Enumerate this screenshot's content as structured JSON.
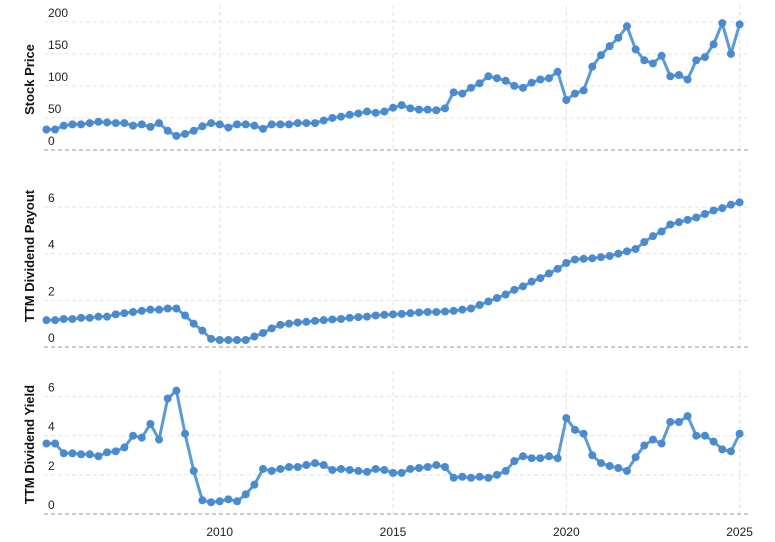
{
  "chart_data": [
    {
      "type": "line",
      "ylabel": "Stock Price",
      "color": "#5b9bd5",
      "x": [
        2005,
        2005.25,
        2005.5,
        2005.75,
        2006,
        2006.25,
        2006.5,
        2006.75,
        2007,
        2007.25,
        2007.5,
        2007.75,
        2008,
        2008.25,
        2008.5,
        2008.75,
        2009,
        2009.25,
        2009.5,
        2009.75,
        2010,
        2010.25,
        2010.5,
        2010.75,
        2011,
        2011.25,
        2011.5,
        2011.75,
        2012,
        2012.25,
        2012.5,
        2012.75,
        2013,
        2013.25,
        2013.5,
        2013.75,
        2014,
        2014.25,
        2014.5,
        2014.75,
        2015,
        2015.25,
        2015.5,
        2015.75,
        2016,
        2016.25,
        2016.5,
        2016.75,
        2017,
        2017.25,
        2017.5,
        2017.75,
        2018,
        2018.25,
        2018.5,
        2018.75,
        2019,
        2019.25,
        2019.5,
        2019.75,
        2020,
        2020.25,
        2020.5,
        2020.75,
        2021,
        2021.25,
        2021.5,
        2021.75,
        2022,
        2022.25,
        2022.5,
        2022.75,
        2023,
        2023.25,
        2023.5,
        2023.75,
        2024,
        2024.25,
        2024.5,
        2024.75,
        2025
      ],
      "values": [
        32,
        32,
        38,
        40,
        40,
        42,
        44,
        43,
        42,
        42,
        38,
        40,
        36,
        42,
        30,
        22,
        25,
        30,
        37,
        42,
        40,
        35,
        40,
        40,
        38,
        33,
        40,
        40,
        40,
        42,
        42,
        42,
        46,
        50,
        52,
        55,
        57,
        60,
        58,
        60,
        66,
        70,
        65,
        63,
        63,
        62,
        65,
        90,
        88,
        97,
        104,
        115,
        112,
        108,
        100,
        97,
        105,
        110,
        112,
        122,
        78,
        88,
        93,
        130,
        148,
        162,
        175,
        193,
        157,
        140,
        135,
        147,
        115,
        117,
        110,
        140,
        145,
        165,
        198,
        150,
        196
      ],
      "xlim": [
        2004.93,
        2025.3
      ],
      "ylim": [
        0,
        220
      ],
      "yticks": [
        0,
        50,
        100,
        150,
        200
      ]
    },
    {
      "type": "line",
      "ylabel": "TTM Dividend Payout",
      "color": "#5b9bd5",
      "x": [
        2005,
        2005.25,
        2005.5,
        2005.75,
        2006,
        2006.25,
        2006.5,
        2006.75,
        2007,
        2007.25,
        2007.5,
        2007.75,
        2008,
        2008.25,
        2008.5,
        2008.75,
        2009,
        2009.25,
        2009.5,
        2009.75,
        2010,
        2010.25,
        2010.5,
        2010.75,
        2011,
        2011.25,
        2011.5,
        2011.75,
        2012,
        2012.25,
        2012.5,
        2012.75,
        2013,
        2013.25,
        2013.5,
        2013.75,
        2014,
        2014.25,
        2014.5,
        2014.75,
        2015,
        2015.25,
        2015.5,
        2015.75,
        2016,
        2016.25,
        2016.5,
        2016.75,
        2017,
        2017.25,
        2017.5,
        2017.75,
        2018,
        2018.25,
        2018.5,
        2018.75,
        2019,
        2019.25,
        2019.5,
        2019.75,
        2020,
        2020.25,
        2020.5,
        2020.75,
        2021,
        2021.25,
        2021.5,
        2021.75,
        2022,
        2022.25,
        2022.5,
        2022.75,
        2023,
        2023.25,
        2023.5,
        2023.75,
        2024,
        2024.25,
        2024.5,
        2024.75,
        2025
      ],
      "values": [
        1.15,
        1.15,
        1.2,
        1.2,
        1.25,
        1.25,
        1.3,
        1.3,
        1.4,
        1.45,
        1.5,
        1.55,
        1.6,
        1.6,
        1.65,
        1.65,
        1.35,
        1.0,
        0.7,
        0.35,
        0.3,
        0.3,
        0.3,
        0.3,
        0.45,
        0.6,
        0.8,
        0.95,
        1.0,
        1.05,
        1.08,
        1.12,
        1.15,
        1.18,
        1.2,
        1.25,
        1.28,
        1.3,
        1.35,
        1.38,
        1.4,
        1.42,
        1.45,
        1.48,
        1.5,
        1.5,
        1.52,
        1.55,
        1.6,
        1.65,
        1.8,
        1.95,
        2.1,
        2.25,
        2.45,
        2.6,
        2.8,
        2.95,
        3.15,
        3.35,
        3.6,
        3.75,
        3.78,
        3.8,
        3.85,
        3.9,
        4.0,
        4.1,
        4.2,
        4.5,
        4.75,
        4.95,
        5.25,
        5.35,
        5.45,
        5.55,
        5.7,
        5.85,
        5.95,
        6.1,
        6.2
      ],
      "xlim": [
        2004.93,
        2025.3
      ],
      "ylim": [
        0,
        7.8
      ],
      "yticks": [
        0,
        2,
        4,
        6
      ]
    },
    {
      "type": "line",
      "ylabel": "TTM Dividend Yield",
      "color": "#5b9bd5",
      "x": [
        2005,
        2005.25,
        2005.5,
        2005.75,
        2006,
        2006.25,
        2006.5,
        2006.75,
        2007,
        2007.25,
        2007.5,
        2007.75,
        2008,
        2008.25,
        2008.5,
        2008.75,
        2009,
        2009.25,
        2009.5,
        2009.75,
        2010,
        2010.25,
        2010.5,
        2010.75,
        2011,
        2011.25,
        2011.5,
        2011.75,
        2012,
        2012.25,
        2012.5,
        2012.75,
        2013,
        2013.25,
        2013.5,
        2013.75,
        2014,
        2014.25,
        2014.5,
        2014.75,
        2015,
        2015.25,
        2015.5,
        2015.75,
        2016,
        2016.25,
        2016.5,
        2016.75,
        2017,
        2017.25,
        2017.5,
        2017.75,
        2018,
        2018.25,
        2018.5,
        2018.75,
        2019,
        2019.25,
        2019.5,
        2019.75,
        2020,
        2020.25,
        2020.5,
        2020.75,
        2021,
        2021.25,
        2021.5,
        2021.75,
        2022,
        2022.25,
        2022.5,
        2022.75,
        2023,
        2023.25,
        2023.5,
        2023.75,
        2024,
        2024.25,
        2024.5,
        2024.75,
        2025
      ],
      "values": [
        3.6,
        3.6,
        3.1,
        3.1,
        3.05,
        3.05,
        2.95,
        3.15,
        3.2,
        3.4,
        4.0,
        3.9,
        4.6,
        3.8,
        5.9,
        6.3,
        4.1,
        2.2,
        0.7,
        0.6,
        0.65,
        0.75,
        0.65,
        1.0,
        1.5,
        2.3,
        2.2,
        2.3,
        2.4,
        2.4,
        2.5,
        2.6,
        2.5,
        2.25,
        2.3,
        2.25,
        2.2,
        2.15,
        2.3,
        2.25,
        2.1,
        2.1,
        2.3,
        2.35,
        2.4,
        2.5,
        2.4,
        1.85,
        1.9,
        1.85,
        1.9,
        1.85,
        2.0,
        2.2,
        2.7,
        2.95,
        2.85,
        2.85,
        2.95,
        2.85,
        4.9,
        4.3,
        4.1,
        3.0,
        2.6,
        2.45,
        2.35,
        2.2,
        2.9,
        3.5,
        3.8,
        3.6,
        4.7,
        4.7,
        5.0,
        4.0,
        4.0,
        3.7,
        3.3,
        3.2,
        4.1
      ],
      "xlim": [
        2004.93,
        2025.3
      ],
      "ylim": [
        0,
        7.1
      ],
      "yticks": [
        0,
        2,
        4,
        6
      ],
      "xticks": [
        2010,
        2015,
        2020,
        2025
      ]
    }
  ]
}
